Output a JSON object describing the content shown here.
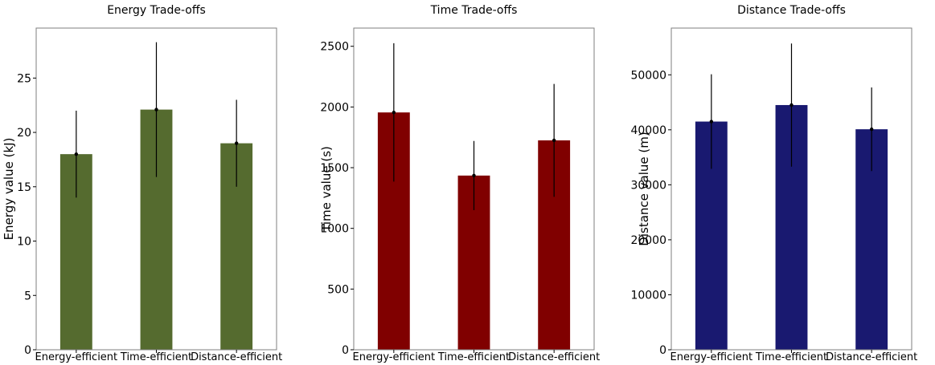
{
  "chart_data": [
    {
      "type": "bar",
      "title": "Energy Trade-offs",
      "xlabel": "",
      "ylabel": "Energy value (kJ)",
      "categories": [
        "Energy-efficient",
        "Time-efficient",
        "Distance-efficient"
      ],
      "values": [
        18.0,
        22.1,
        19.0
      ],
      "error": [
        4.0,
        6.2,
        4.0
      ],
      "ylim": [
        0,
        29.6
      ],
      "yticks": [
        0,
        5,
        10,
        15,
        20,
        25
      ],
      "color": "#556b2f",
      "grid": false,
      "legend": "none"
    },
    {
      "type": "bar",
      "title": "Time Trade-offs",
      "xlabel": "",
      "ylabel": "Time value (s)",
      "categories": [
        "Energy-efficient",
        "Time-efficient",
        "Distance-efficient"
      ],
      "values": [
        1955,
        1435,
        1725
      ],
      "error": [
        570,
        285,
        465
      ],
      "ylim": [
        0,
        2650
      ],
      "yticks": [
        0,
        500,
        1000,
        1500,
        2000,
        2500
      ],
      "color": "#800000",
      "grid": false,
      "legend": "none"
    },
    {
      "type": "bar",
      "title": "Distance Trade-offs",
      "xlabel": "",
      "ylabel": "Distance value (m)",
      "categories": [
        "Energy-efficient",
        "Time-efficient",
        "Distance-efficient"
      ],
      "values": [
        41500,
        44500,
        40100
      ],
      "error": [
        8600,
        11200,
        7600
      ],
      "ylim": [
        0,
        58500
      ],
      "yticks": [
        0,
        10000,
        20000,
        30000,
        40000,
        50000
      ],
      "color": "#191970",
      "grid": false,
      "legend": "none"
    }
  ]
}
